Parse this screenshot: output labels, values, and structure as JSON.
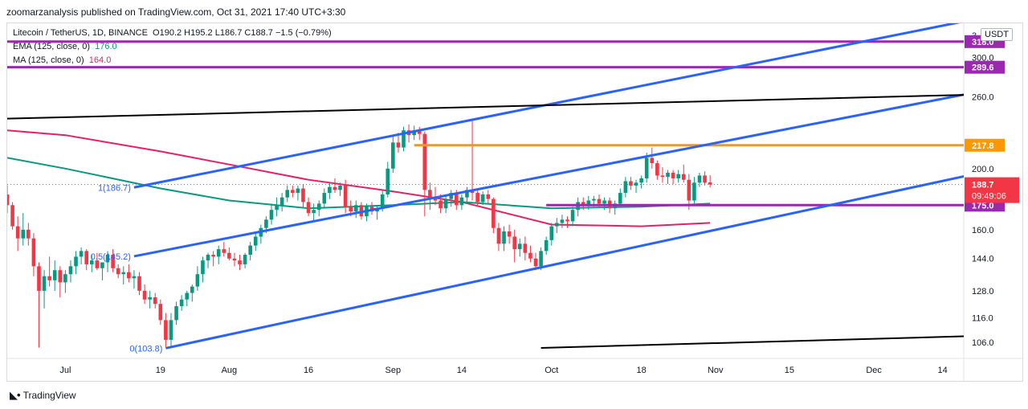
{
  "header": {
    "publisher": "zoomarzanalysis published on TradingView.com, Oct 31, 2021 17:40 UTC+3:30"
  },
  "legend": {
    "symbol": "Litecoin / TetherUS, 1D, BINANCE",
    "ohlc": "O190.2  H195.2  L186.7  C188.7  −1.5 (−0.79%)",
    "ema_label": "EMA (125, close, 0)",
    "ema_value": "176.0",
    "ma_label": "MA (125, close, 0)",
    "ma_value": "164.0"
  },
  "currency_button": "USDT",
  "branding": "TradingView",
  "colors": {
    "up": "#089981",
    "down": "#f23645",
    "ema": "#089981",
    "ma": "#e91e63",
    "channel": "#2962ff",
    "support_purple": "#9c27b0",
    "resistance_orange": "#ff9800",
    "trendline": "#000000"
  },
  "chart_data": {
    "type": "candlestick",
    "title": "Litecoin / TetherUS, 1D, BINANCE",
    "y_scale": "log",
    "ylim": [
      100,
      340
    ],
    "y_ticks": [
      "106.0",
      "116.0",
      "128.0",
      "144.0",
      "160.0",
      "200.0",
      "260.0",
      "300.0"
    ],
    "y_top_partial_tick": "3",
    "x_labels": [
      "Jul",
      "19",
      "Aug",
      "16",
      "Sep",
      "14",
      "Oct",
      "18",
      "Nov",
      "15",
      "Dec",
      "14"
    ],
    "x_label_dates": [
      "2021-07-01",
      "2021-07-19",
      "2021-08-01",
      "2021-08-16",
      "2021-09-01",
      "2021-09-14",
      "2021-10-01",
      "2021-10-18",
      "2021-11-01",
      "2021-11-15",
      "2021-12-01",
      "2021-12-14"
    ],
    "x_start": "2021-06-20",
    "x_end": "2021-12-18",
    "candles": [
      [
        "2021-06-20",
        182,
        188,
        170,
        175
      ],
      [
        "2021-06-21",
        175,
        177,
        160,
        162
      ],
      [
        "2021-06-22",
        162,
        168,
        148,
        155
      ],
      [
        "2021-06-23",
        155,
        170,
        151,
        160
      ],
      [
        "2021-06-24",
        160,
        164,
        151,
        155
      ],
      [
        "2021-06-25",
        155,
        158,
        135,
        140
      ],
      [
        "2021-06-26",
        140,
        142,
        104,
        128
      ],
      [
        "2021-06-27",
        128,
        138,
        120,
        135
      ],
      [
        "2021-06-28",
        135,
        145,
        130,
        133
      ],
      [
        "2021-06-29",
        133,
        143,
        128,
        138
      ],
      [
        "2021-06-30",
        138,
        140,
        125,
        132
      ],
      [
        "2021-07-01",
        132,
        138,
        127,
        136
      ],
      [
        "2021-07-02",
        136,
        143,
        132,
        140
      ],
      [
        "2021-07-03",
        140,
        148,
        136,
        145
      ],
      [
        "2021-07-04",
        145,
        150,
        141,
        148
      ],
      [
        "2021-07-05",
        148,
        149,
        138,
        141
      ],
      [
        "2021-07-06",
        141,
        146,
        137,
        143
      ],
      [
        "2021-07-07",
        143,
        147,
        138,
        139
      ],
      [
        "2021-07-08",
        139,
        141,
        133,
        142
      ],
      [
        "2021-07-09",
        142,
        148,
        137,
        146
      ],
      [
        "2021-07-10",
        146,
        149,
        137,
        139
      ],
      [
        "2021-07-11",
        139,
        141,
        134,
        136
      ],
      [
        "2021-07-12",
        136,
        140,
        131,
        137
      ],
      [
        "2021-07-13",
        137,
        141,
        132,
        134
      ],
      [
        "2021-07-14",
        134,
        138,
        129,
        135
      ],
      [
        "2021-07-15",
        135,
        137,
        126,
        128
      ],
      [
        "2021-07-16",
        128,
        131,
        122,
        124
      ],
      [
        "2021-07-17",
        124,
        128,
        120,
        125
      ],
      [
        "2021-07-18",
        125,
        127,
        120,
        122
      ],
      [
        "2021-07-19",
        122,
        124,
        113,
        115
      ],
      [
        "2021-07-20",
        115,
        118,
        104,
        107
      ],
      [
        "2021-07-21",
        107,
        118,
        104,
        115
      ],
      [
        "2021-07-22",
        115,
        123,
        113,
        121
      ],
      [
        "2021-07-23",
        121,
        126,
        119,
        124
      ],
      [
        "2021-07-24",
        124,
        128,
        121,
        127
      ],
      [
        "2021-07-25",
        127,
        131,
        123,
        130
      ],
      [
        "2021-07-26",
        130,
        140,
        128,
        136
      ],
      [
        "2021-07-27",
        136,
        145,
        132,
        143
      ],
      [
        "2021-07-28",
        143,
        147,
        139,
        146
      ],
      [
        "2021-07-29",
        146,
        148,
        140,
        145
      ],
      [
        "2021-07-30",
        145,
        151,
        141,
        149
      ],
      [
        "2021-07-31",
        149,
        153,
        145,
        147
      ],
      [
        "2021-08-01",
        147,
        150,
        143,
        144
      ],
      [
        "2021-08-02",
        144,
        147,
        140,
        143
      ],
      [
        "2021-08-03",
        143,
        146,
        138,
        141
      ],
      [
        "2021-08-04",
        141,
        147,
        139,
        146
      ],
      [
        "2021-08-05",
        146,
        153,
        143,
        151
      ],
      [
        "2021-08-06",
        151,
        158,
        148,
        156
      ],
      [
        "2021-08-07",
        156,
        163,
        152,
        161
      ],
      [
        "2021-08-08",
        161,
        168,
        158,
        166
      ],
      [
        "2021-08-09",
        166,
        176,
        163,
        172
      ],
      [
        "2021-08-10",
        172,
        180,
        168,
        175
      ],
      [
        "2021-08-11",
        175,
        183,
        171,
        180
      ],
      [
        "2021-08-12",
        180,
        188,
        177,
        185
      ],
      [
        "2021-08-13",
        185,
        188,
        180,
        183
      ],
      [
        "2021-08-14",
        183,
        188,
        178,
        186
      ],
      [
        "2021-08-15",
        186,
        189,
        173,
        177
      ],
      [
        "2021-08-16",
        177,
        180,
        168,
        170
      ],
      [
        "2021-08-17",
        170,
        176,
        165,
        172
      ],
      [
        "2021-08-18",
        172,
        178,
        168,
        176
      ],
      [
        "2021-08-19",
        176,
        186,
        173,
        183
      ],
      [
        "2021-08-20",
        183,
        190,
        179,
        187
      ],
      [
        "2021-08-21",
        187,
        193,
        183,
        185
      ],
      [
        "2021-08-22",
        185,
        190,
        181,
        188
      ],
      [
        "2021-08-23",
        188,
        192,
        170,
        174
      ],
      [
        "2021-08-24",
        174,
        178,
        168,
        171
      ],
      [
        "2021-08-25",
        171,
        178,
        167,
        175
      ],
      [
        "2021-08-26",
        175,
        177,
        166,
        168
      ],
      [
        "2021-08-27",
        168,
        176,
        165,
        174
      ],
      [
        "2021-08-28",
        174,
        177,
        169,
        171
      ],
      [
        "2021-08-29",
        171,
        175,
        166,
        173
      ],
      [
        "2021-08-30",
        173,
        185,
        171,
        182
      ],
      [
        "2021-08-31",
        182,
        205,
        180,
        200
      ],
      [
        "2021-09-01",
        200,
        225,
        197,
        220
      ],
      [
        "2021-09-02",
        220,
        228,
        212,
        216
      ],
      [
        "2021-09-03",
        216,
        233,
        213,
        230
      ],
      [
        "2021-09-04",
        230,
        235,
        220,
        226
      ],
      [
        "2021-09-05",
        226,
        234,
        222,
        230
      ],
      [
        "2021-09-06",
        230,
        233,
        222,
        227
      ],
      [
        "2021-09-07",
        227,
        229,
        168,
        185
      ],
      [
        "2021-09-08",
        185,
        190,
        172,
        180
      ],
      [
        "2021-09-09",
        180,
        187,
        175,
        178
      ],
      [
        "2021-09-10",
        178,
        182,
        170,
        173
      ],
      [
        "2021-09-11",
        173,
        181,
        170,
        179
      ],
      [
        "2021-09-12",
        179,
        185,
        174,
        183
      ],
      [
        "2021-09-13",
        183,
        185,
        172,
        175
      ],
      [
        "2021-09-14",
        175,
        182,
        172,
        180
      ],
      [
        "2021-09-15",
        180,
        187,
        177,
        185
      ],
      [
        "2021-09-16",
        185,
        240,
        178,
        183
      ],
      [
        "2021-09-17",
        183,
        186,
        174,
        177
      ],
      [
        "2021-09-18",
        177,
        184,
        175,
        182
      ],
      [
        "2021-09-19",
        182,
        185,
        176,
        179
      ],
      [
        "2021-09-20",
        179,
        180,
        158,
        161
      ],
      [
        "2021-09-21",
        161,
        164,
        148,
        152
      ],
      [
        "2021-09-22",
        152,
        162,
        148,
        159
      ],
      [
        "2021-09-23",
        159,
        163,
        152,
        156
      ],
      [
        "2021-09-24",
        156,
        160,
        142,
        149
      ],
      [
        "2021-09-25",
        149,
        155,
        145,
        152
      ],
      [
        "2021-09-26",
        152,
        156,
        143,
        147
      ],
      [
        "2021-09-27",
        147,
        151,
        142,
        144
      ],
      [
        "2021-09-28",
        144,
        147,
        138,
        140
      ],
      [
        "2021-09-29",
        140,
        150,
        138,
        148
      ],
      [
        "2021-09-30",
        148,
        156,
        146,
        154
      ],
      [
        "2021-10-01",
        154,
        164,
        151,
        162
      ],
      [
        "2021-10-02",
        162,
        167,
        158,
        164
      ],
      [
        "2021-10-03",
        164,
        169,
        161,
        166
      ],
      [
        "2021-10-04",
        166,
        168,
        161,
        165
      ],
      [
        "2021-10-05",
        165,
        174,
        162,
        172
      ],
      [
        "2021-10-06",
        172,
        180,
        168,
        177
      ],
      [
        "2021-10-07",
        177,
        180,
        172,
        175
      ],
      [
        "2021-10-08",
        175,
        181,
        172,
        178
      ],
      [
        "2021-10-09",
        178,
        181,
        174,
        179
      ],
      [
        "2021-10-10",
        179,
        182,
        173,
        176
      ],
      [
        "2021-10-11",
        176,
        180,
        172,
        178
      ],
      [
        "2021-10-12",
        178,
        180,
        170,
        173
      ],
      [
        "2021-10-13",
        173,
        178,
        169,
        176
      ],
      [
        "2021-10-14",
        176,
        186,
        174,
        183
      ],
      [
        "2021-10-15",
        183,
        194,
        180,
        191
      ],
      [
        "2021-10-16",
        191,
        194,
        185,
        188
      ],
      [
        "2021-10-17",
        188,
        192,
        183,
        190
      ],
      [
        "2021-10-18",
        190,
        195,
        186,
        193
      ],
      [
        "2021-10-19",
        193,
        212,
        190,
        208
      ],
      [
        "2021-10-20",
        208,
        216,
        200,
        204
      ],
      [
        "2021-10-21",
        204,
        206,
        192,
        195
      ],
      [
        "2021-10-22",
        195,
        201,
        190,
        194
      ],
      [
        "2021-10-23",
        194,
        199,
        189,
        197
      ],
      [
        "2021-10-24",
        197,
        199,
        189,
        193
      ],
      [
        "2021-10-25",
        193,
        199,
        190,
        196
      ],
      [
        "2021-10-26",
        196,
        203,
        190,
        192
      ],
      [
        "2021-10-27",
        192,
        196,
        172,
        178
      ],
      [
        "2021-10-28",
        178,
        194,
        176,
        190
      ],
      [
        "2021-10-29",
        190,
        197,
        187,
        195
      ],
      [
        "2021-10-30",
        195,
        198,
        188,
        190
      ],
      [
        "2021-10-31",
        190.2,
        195.2,
        186.7,
        188.7
      ]
    ],
    "ema_125": [
      [
        "2021-06-20",
        208
      ],
      [
        "2021-07-01",
        200
      ],
      [
        "2021-07-19",
        186
      ],
      [
        "2021-08-01",
        178
      ],
      [
        "2021-08-16",
        173
      ],
      [
        "2021-09-01",
        175
      ],
      [
        "2021-09-14",
        177
      ],
      [
        "2021-10-01",
        173
      ],
      [
        "2021-10-18",
        174
      ],
      [
        "2021-10-31",
        176
      ]
    ],
    "ma_125": [
      [
        "2021-06-20",
        230
      ],
      [
        "2021-07-01",
        226
      ],
      [
        "2021-07-19",
        213
      ],
      [
        "2021-08-01",
        203
      ],
      [
        "2021-08-16",
        192
      ],
      [
        "2021-09-01",
        184
      ],
      [
        "2021-09-14",
        177
      ],
      [
        "2021-10-01",
        163
      ],
      [
        "2021-10-18",
        162
      ],
      [
        "2021-10-31",
        164
      ]
    ],
    "horizontal_levels": [
      {
        "value": 318.0,
        "label": "318.0",
        "color": "#9c27b0"
      },
      {
        "value": 289.6,
        "label": "289.6",
        "color": "#9c27b0"
      },
      {
        "value": 217.8,
        "label": "217.8",
        "color": "#ff9800",
        "from": "2021-09-05"
      },
      {
        "value": 175.0,
        "label": "175.0",
        "color": "#9c27b0",
        "from": "2021-09-30"
      }
    ],
    "trendlines": [
      {
        "name": "channel-upper",
        "color": "#2962ff",
        "points": [
          [
            "2021-07-14",
            186.7
          ],
          [
            "2021-12-20",
            345
          ]
        ]
      },
      {
        "name": "channel-middle",
        "color": "#2962ff",
        "points": [
          [
            "2021-07-14",
            145.2
          ],
          [
            "2021-12-20",
            264
          ]
        ]
      },
      {
        "name": "channel-lower",
        "color": "#2962ff",
        "points": [
          [
            "2021-07-20",
            103.8
          ],
          [
            "2021-12-20",
            196
          ]
        ]
      },
      {
        "name": "black-resistance",
        "color": "#000000",
        "points": [
          [
            "2021-06-20",
            240
          ],
          [
            "2021-12-20",
            262
          ]
        ]
      },
      {
        "name": "black-support",
        "color": "#000000",
        "points": [
          [
            "2021-09-29",
            103.9
          ],
          [
            "2021-12-20",
            108.5
          ]
        ]
      }
    ],
    "fib_labels": [
      {
        "text": "1(186.7)",
        "date": "2021-07-14",
        "value": 186.7
      },
      {
        "text": "0.5(145.2)",
        "date": "2021-07-14",
        "value": 145.2
      },
      {
        "text": "0(103.8)",
        "date": "2021-07-20",
        "value": 103.8
      }
    ],
    "last_price": {
      "value": 188.7,
      "label": "188.7",
      "countdown": "09:49:06"
    }
  }
}
